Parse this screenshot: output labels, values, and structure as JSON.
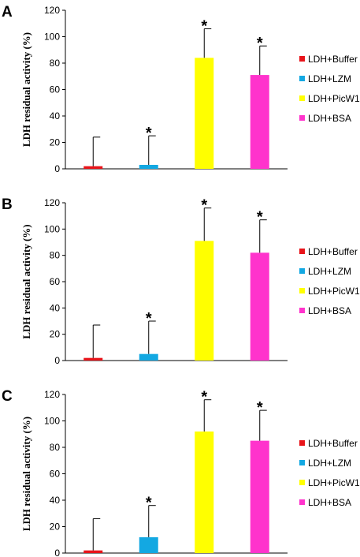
{
  "colors": {
    "LDH+Buffer": "#e8141a",
    "LDH+LZM": "#13a8e2",
    "LDH+PicW1": "#ffff00",
    "LDH+BSA": "#ff33cc"
  },
  "significance_marker": "*",
  "chart_data": [
    {
      "panel": "A",
      "type": "bar",
      "categories": [
        "LDH+Buffer",
        "LDH+LZM",
        "LDH+PicW1",
        "LDH+BSA"
      ],
      "values": [
        2,
        3,
        84,
        71
      ],
      "error_upper": [
        24,
        25,
        106,
        93
      ],
      "significant": [
        false,
        true,
        true,
        true
      ],
      "ylabel": "LDH residual activity (%)",
      "ylim": [
        0,
        120
      ],
      "yticks": [
        "0",
        "20",
        "40",
        "60",
        "80",
        "100",
        "120"
      ],
      "legend": [
        "LDH+Buffer",
        "LDH+LZM",
        "LDH+PicW1",
        "LDH+BSA"
      ],
      "legend_position": "right",
      "grid": false
    },
    {
      "panel": "B",
      "type": "bar",
      "categories": [
        "LDH+Buffer",
        "LDH+LZM",
        "LDH+PicW1",
        "LDH+BSA"
      ],
      "values": [
        2,
        5,
        91,
        82
      ],
      "error_upper": [
        27,
        30,
        116,
        107
      ],
      "significant": [
        false,
        true,
        true,
        true
      ],
      "ylabel": "LDH residual activity (%)",
      "ylim": [
        0,
        120
      ],
      "yticks": [
        "0",
        "20",
        "40",
        "60",
        "80",
        "100",
        "120"
      ],
      "legend": [
        "LDH+Buffer",
        "LDH+LZM",
        "LDH+PicW1",
        "LDH+BSA"
      ],
      "legend_position": "right",
      "grid": false
    },
    {
      "panel": "C",
      "type": "bar",
      "categories": [
        "LDH+Buffer",
        "LDH+LZM",
        "LDH+PicW1",
        "LDH+BSA"
      ],
      "values": [
        2,
        12,
        92,
        85
      ],
      "error_upper": [
        26,
        36,
        116,
        108
      ],
      "significant": [
        false,
        true,
        true,
        true
      ],
      "ylabel": "LDH residual activity (%)",
      "ylim": [
        0,
        120
      ],
      "yticks": [
        "0",
        "20",
        "40",
        "60",
        "80",
        "100",
        "120"
      ],
      "legend": [
        "LDH+Buffer",
        "LDH+LZM",
        "LDH+PicW1",
        "LDH+BSA"
      ],
      "legend_position": "right",
      "grid": false
    }
  ]
}
